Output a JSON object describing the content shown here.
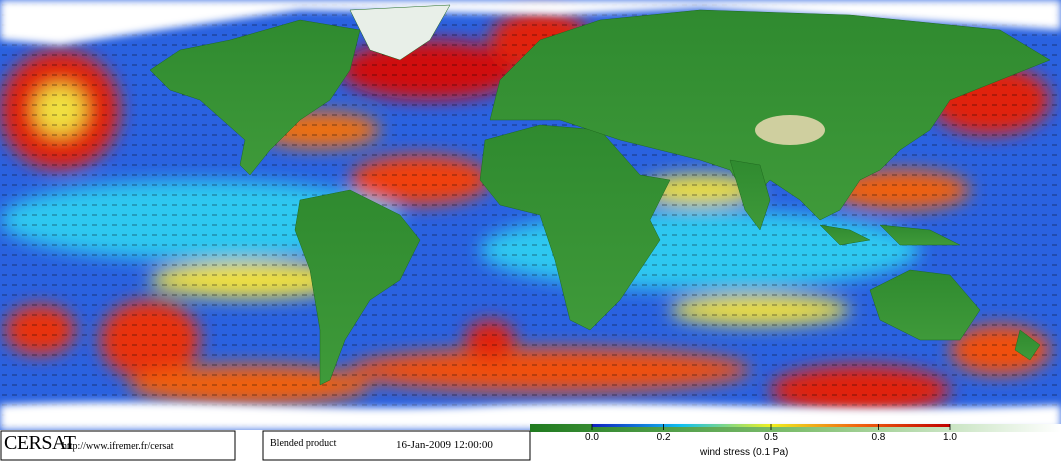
{
  "footer": {
    "logo": "CERSAT",
    "url": "http://www.ifremer.fr/cersat",
    "product": "Blended product",
    "timestamp": "16-Jan-2009 12:00:00"
  },
  "colorbar": {
    "label": "wind stress (0.1 Pa)",
    "range": [
      0,
      1
    ],
    "ticks": [
      {
        "value": 0,
        "label": "0.0"
      },
      {
        "value": 0.2,
        "label": "0.2"
      },
      {
        "value": 0.5,
        "label": "0.5"
      },
      {
        "value": 0.8,
        "label": "0.8"
      },
      {
        "value": 1,
        "label": "1.0"
      }
    ]
  }
}
